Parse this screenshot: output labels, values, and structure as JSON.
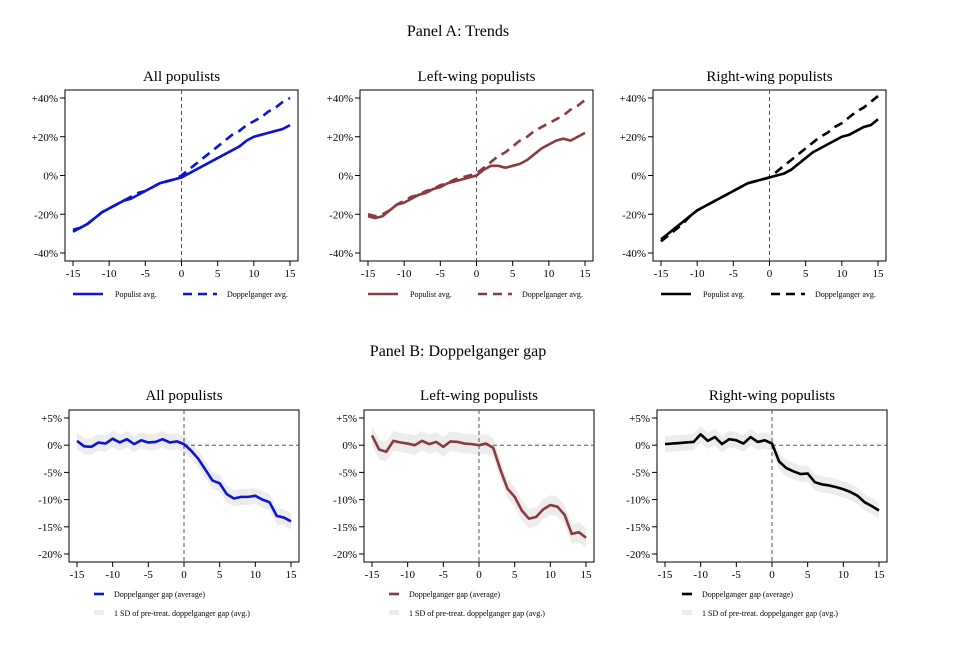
{
  "panel_titles": [
    "Panel A: Trends",
    "Panel B: Doppelganger gap"
  ],
  "chart_data": [
    {
      "type": "line",
      "panel": "A",
      "title": "All populists",
      "color": "#0a14d2",
      "xlim": [
        -15,
        15
      ],
      "ylim": [
        -40,
        40
      ],
      "xticks": [
        -15,
        -10,
        -5,
        0,
        5,
        10,
        15
      ],
      "yticks": [
        -40,
        -20,
        0,
        20,
        40
      ],
      "ytick_labels": [
        "-40%",
        "-20%",
        "0%",
        "+20%",
        "+40%"
      ],
      "series": [
        {
          "name": "Populist avg.",
          "dash": "solid",
          "x": [
            -15,
            -14,
            -13,
            -12,
            -11,
            -10,
            -9,
            -8,
            -7,
            -6,
            -5,
            -4,
            -3,
            -2,
            -1,
            0,
            1,
            2,
            3,
            4,
            5,
            6,
            7,
            8,
            9,
            10,
            11,
            12,
            13,
            14,
            15
          ],
          "values": [
            -28,
            -27,
            -25,
            -22,
            -19,
            -17,
            -15,
            -13,
            -12,
            -10,
            -8,
            -6,
            -4,
            -3,
            -2,
            -1,
            1,
            3,
            5,
            7,
            9,
            11,
            13,
            15,
            18,
            20,
            21,
            22,
            23,
            24,
            26
          ]
        },
        {
          "name": "Doppelganger avg.",
          "dash": "dashed",
          "x": [
            -15,
            -14,
            -13,
            -12,
            -11,
            -10,
            -9,
            -8,
            -7,
            -6,
            -5,
            -4,
            -3,
            -2,
            -1,
            0,
            1,
            2,
            3,
            4,
            5,
            6,
            7,
            8,
            9,
            10,
            11,
            12,
            13,
            14,
            15
          ],
          "values": [
            -29,
            -27,
            -25,
            -22,
            -19,
            -17,
            -15,
            -13,
            -11,
            -9,
            -8,
            -6,
            -4,
            -3,
            -2,
            0,
            3,
            6,
            9,
            12,
            15,
            18,
            21,
            23,
            26,
            28,
            30,
            33,
            35,
            38,
            40
          ]
        }
      ],
      "legend": [
        "Populist avg.",
        "Doppelganger avg."
      ]
    },
    {
      "type": "line",
      "panel": "A",
      "title": "Left-wing populists",
      "color": "#8b3a3f",
      "xlim": [
        -15,
        15
      ],
      "ylim": [
        -40,
        40
      ],
      "xticks": [
        -15,
        -10,
        -5,
        0,
        5,
        10,
        15
      ],
      "yticks": [
        -40,
        -20,
        0,
        20,
        40
      ],
      "ytick_labels": [
        "-40%",
        "-20%",
        "0%",
        "+20%",
        "+40%"
      ],
      "series": [
        {
          "name": "Populist avg.",
          "dash": "solid",
          "x": [
            -15,
            -14,
            -13,
            -12,
            -11,
            -10,
            -9,
            -8,
            -7,
            -6,
            -5,
            -4,
            -3,
            -2,
            -1,
            0,
            1,
            2,
            3,
            4,
            5,
            6,
            7,
            8,
            9,
            10,
            11,
            12,
            13,
            14,
            15
          ],
          "values": [
            -21,
            -22,
            -21,
            -18,
            -15,
            -14,
            -12,
            -10,
            -9,
            -7,
            -6,
            -4,
            -3,
            -2,
            -1,
            0,
            3,
            5,
            5,
            4,
            5,
            6,
            8,
            11,
            14,
            16,
            18,
            19,
            18,
            20,
            22
          ]
        },
        {
          "name": "Doppelganger avg.",
          "dash": "dashed",
          "x": [
            -15,
            -14,
            -13,
            -12,
            -11,
            -10,
            -9,
            -8,
            -7,
            -6,
            -5,
            -4,
            -3,
            -2,
            -1,
            0,
            1,
            2,
            3,
            4,
            5,
            6,
            7,
            8,
            9,
            10,
            11,
            12,
            13,
            14,
            15
          ],
          "values": [
            -20,
            -21,
            -20,
            -18,
            -15,
            -13,
            -11,
            -10,
            -8,
            -7,
            -5,
            -4,
            -2,
            -1,
            0,
            1,
            4,
            7,
            10,
            12,
            15,
            18,
            20,
            23,
            25,
            27,
            29,
            31,
            34,
            36,
            39
          ]
        }
      ],
      "legend": [
        "Populist avg.",
        "Doppelganger avg."
      ]
    },
    {
      "type": "line",
      "panel": "A",
      "title": "Right-wing populists",
      "color": "#000000",
      "xlim": [
        -15,
        15
      ],
      "ylim": [
        -40,
        40
      ],
      "xticks": [
        -15,
        -10,
        -5,
        0,
        5,
        10,
        15
      ],
      "yticks": [
        -40,
        -20,
        0,
        20,
        40
      ],
      "ytick_labels": [
        "-40%",
        "-20%",
        "0%",
        "+20%",
        "+40%"
      ],
      "series": [
        {
          "name": "Populist avg.",
          "dash": "solid",
          "x": [
            -15,
            -14,
            -13,
            -12,
            -11,
            -10,
            -9,
            -8,
            -7,
            -6,
            -5,
            -4,
            -3,
            -2,
            -1,
            0,
            1,
            2,
            3,
            4,
            5,
            6,
            7,
            8,
            9,
            10,
            11,
            12,
            13,
            14,
            15
          ],
          "values": [
            -33,
            -30,
            -27,
            -24,
            -21,
            -18,
            -16,
            -14,
            -12,
            -10,
            -8,
            -6,
            -4,
            -3,
            -2,
            -1,
            0,
            1,
            3,
            6,
            9,
            12,
            14,
            16,
            18,
            20,
            21,
            23,
            25,
            26,
            29
          ]
        },
        {
          "name": "Doppelganger avg.",
          "dash": "dashed",
          "x": [
            -15,
            -14,
            -13,
            -12,
            -11,
            -10,
            -9,
            -8,
            -7,
            -6,
            -5,
            -4,
            -3,
            -2,
            -1,
            0,
            1,
            2,
            3,
            4,
            5,
            6,
            7,
            8,
            9,
            10,
            11,
            12,
            13,
            14,
            15
          ],
          "values": [
            -34,
            -31,
            -28,
            -25,
            -21,
            -18,
            -16,
            -14,
            -12,
            -10,
            -8,
            -6,
            -4,
            -3,
            -2,
            -1,
            2,
            5,
            8,
            11,
            14,
            17,
            20,
            22,
            25,
            27,
            30,
            33,
            35,
            38,
            41
          ]
        }
      ],
      "legend": [
        "Populist avg.",
        "Doppelganger avg."
      ]
    },
    {
      "type": "line",
      "panel": "B",
      "title": "All populists",
      "color": "#0a14d2",
      "xlim": [
        -15,
        15
      ],
      "ylim": [
        -20,
        5
      ],
      "xticks": [
        -15,
        -10,
        -5,
        0,
        5,
        10,
        15
      ],
      "yticks": [
        -20,
        -15,
        -10,
        -5,
        0,
        5
      ],
      "ytick_labels": [
        "-20%",
        "-15%",
        "-10%",
        "-5%",
        "0%",
        "+5%"
      ],
      "band_sd": 1.5,
      "series": [
        {
          "name": "Doppelganger gap (average)",
          "dash": "solid",
          "x": [
            -15,
            -14,
            -13,
            -12,
            -11,
            -10,
            -9,
            -8,
            -7,
            -6,
            -5,
            -4,
            -3,
            -2,
            -1,
            0,
            1,
            2,
            3,
            4,
            5,
            6,
            7,
            8,
            9,
            10,
            11,
            12,
            13,
            14,
            15
          ],
          "values": [
            0.8,
            -0.2,
            -0.3,
            0.5,
            0.3,
            1.2,
            0.5,
            1.1,
            0.2,
            0.9,
            0.5,
            0.6,
            1.1,
            0.5,
            0.7,
            0.2,
            -1,
            -2.5,
            -4.5,
            -6.5,
            -7,
            -9,
            -9.8,
            -9.5,
            -9.5,
            -9.3,
            -10,
            -10.5,
            -13,
            -13.3,
            -14
          ]
        }
      ],
      "legend": [
        "Doppelganger gap (average)",
        "1 SD of pre-treat. doppelganger gap (avg.)"
      ]
    },
    {
      "type": "line",
      "panel": "B",
      "title": "Left-wing populists",
      "color": "#8b3a3f",
      "xlim": [
        -15,
        15
      ],
      "ylim": [
        -20,
        5
      ],
      "xticks": [
        -15,
        -10,
        -5,
        0,
        5,
        10,
        15
      ],
      "yticks": [
        -20,
        -15,
        -10,
        -5,
        0,
        5
      ],
      "ytick_labels": [
        "-20%",
        "-15%",
        "-10%",
        "-5%",
        "0%",
        "+5%"
      ],
      "band_sd": 1.8,
      "series": [
        {
          "name": "Doppelganger gap (average)",
          "dash": "solid",
          "x": [
            -15,
            -14,
            -13,
            -12,
            -11,
            -10,
            -9,
            -8,
            -7,
            -6,
            -5,
            -4,
            -3,
            -2,
            -1,
            0,
            1,
            2,
            3,
            4,
            5,
            6,
            7,
            8,
            9,
            10,
            11,
            12,
            13,
            14,
            15
          ],
          "values": [
            1.8,
            -0.8,
            -1.2,
            0.8,
            0.5,
            0.3,
            0,
            0.8,
            0.2,
            0.6,
            -0.3,
            0.7,
            0.6,
            0.3,
            0.2,
            0,
            0.3,
            -0.5,
            -4.5,
            -8,
            -9.5,
            -12,
            -13.5,
            -13.2,
            -11.8,
            -11,
            -11.3,
            -12.8,
            -16.3,
            -16,
            -17
          ]
        }
      ],
      "legend": [
        "Doppelganger gap (average)",
        "1 SD of pre-treat. doppelganger gap (avg.)"
      ]
    },
    {
      "type": "line",
      "panel": "B",
      "title": "Right-wing populists",
      "color": "#000000",
      "xlim": [
        -15,
        15
      ],
      "ylim": [
        -20,
        5
      ],
      "xticks": [
        -15,
        -10,
        -5,
        0,
        5,
        10,
        15
      ],
      "yticks": [
        -20,
        -15,
        -10,
        -5,
        0,
        5
      ],
      "ytick_labels": [
        "-20%",
        "-15%",
        "-10%",
        "-5%",
        "0%",
        "+5%"
      ],
      "band_sd": 1.5,
      "series": [
        {
          "name": "Doppelganger gap (average)",
          "dash": "solid",
          "x": [
            -15,
            -14,
            -13,
            -12,
            -11,
            -10,
            -9,
            -8,
            -7,
            -6,
            -5,
            -4,
            -3,
            -2,
            -1,
            0,
            1,
            2,
            3,
            4,
            5,
            6,
            7,
            8,
            9,
            10,
            11,
            12,
            13,
            14,
            15
          ],
          "values": [
            0.2,
            0.3,
            0.4,
            0.5,
            0.6,
            2,
            0.8,
            1.5,
            0.2,
            1.1,
            0.9,
            0.3,
            1.5,
            0.6,
            0.9,
            0.3,
            -3,
            -4.2,
            -4.8,
            -5.3,
            -5.2,
            -6.8,
            -7.2,
            -7.4,
            -7.7,
            -8.1,
            -8.6,
            -9.3,
            -10.5,
            -11.2,
            -12
          ]
        }
      ],
      "legend": [
        "Doppelganger gap (average)",
        "1 SD of pre-treat. doppelganger gap (avg.)"
      ]
    }
  ]
}
